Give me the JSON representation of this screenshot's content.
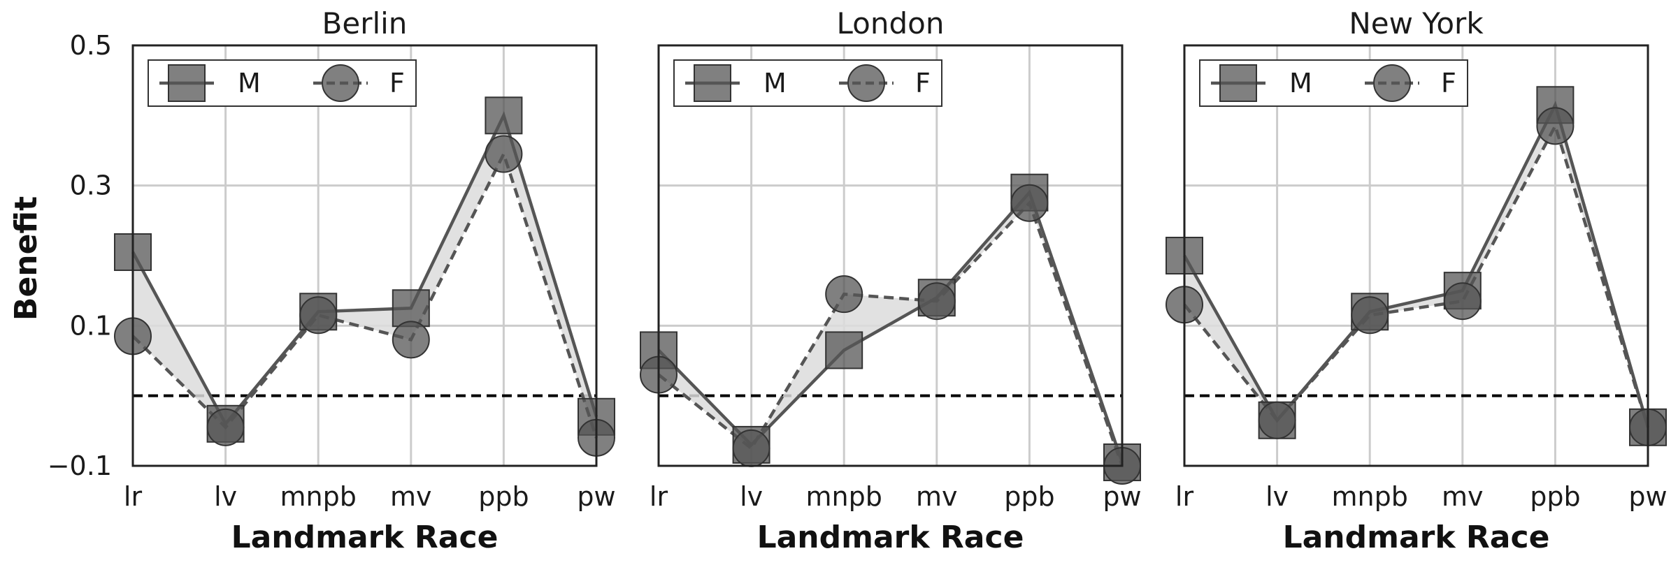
{
  "chart_data": {
    "type": "line",
    "ylabel": "Benefit",
    "xlabel": "Landmark Race",
    "categories": [
      "lr",
      "lv",
      "mnpb",
      "mv",
      "ppb",
      "pw"
    ],
    "yticks": [
      "0.5",
      "0.3",
      "0.1",
      "−0.1"
    ],
    "ylim": [
      -0.1,
      0.5
    ],
    "yticks_values": [
      0.5,
      0.3,
      0.1,
      -0.1
    ],
    "reference_line": 0,
    "grid": true,
    "legend_placement": "top-left",
    "legend": [
      {
        "label": "M",
        "marker": "square",
        "line": "solid"
      },
      {
        "label": "F",
        "marker": "circle",
        "line": "dashed"
      }
    ],
    "colors": {
      "series": "#555555",
      "fill": "#dcdcdc",
      "grid": "#cccccc",
      "frame": "#222222"
    },
    "panels": [
      {
        "title": "Berlin",
        "series": [
          {
            "name": "M",
            "values": [
              0.205,
              -0.04,
              0.12,
              0.125,
              0.4,
              -0.03
            ]
          },
          {
            "name": "F",
            "values": [
              0.085,
              -0.045,
              0.115,
              0.08,
              0.345,
              -0.06
            ]
          }
        ]
      },
      {
        "title": "London",
        "series": [
          {
            "name": "M",
            "values": [
              0.065,
              -0.07,
              0.065,
              0.14,
              0.29,
              -0.095
            ]
          },
          {
            "name": "F",
            "values": [
              0.03,
              -0.075,
              0.145,
              0.135,
              0.275,
              -0.1
            ]
          }
        ]
      },
      {
        "title": "New York",
        "series": [
          {
            "name": "M",
            "values": [
              0.2,
              -0.035,
              0.12,
              0.15,
              0.415,
              -0.045
            ]
          },
          {
            "name": "F",
            "values": [
              0.13,
              -0.035,
              0.115,
              0.135,
              0.385,
              -0.045
            ]
          }
        ]
      }
    ]
  }
}
